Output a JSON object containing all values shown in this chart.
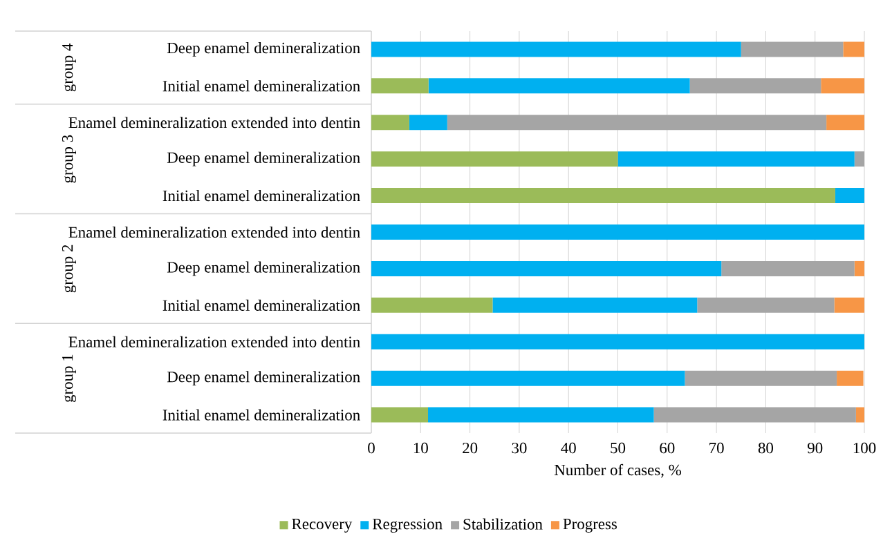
{
  "chart_data": {
    "type": "bar",
    "orientation": "horizontal",
    "stacked": true,
    "xlabel": "Number of cases, %",
    "categories": [
      "Deep enamel demineralization",
      "Initial enamel demineralization",
      "Enamel demineralization extended into dentin",
      "Deep enamel demineralization",
      "Initial enamel demineralization",
      "Enamel demineralization extended into dentin",
      "Deep enamel demineralization",
      "Initial enamel demineralization",
      "Enamel demineralization extended into dentin",
      "Deep enamel demineralization",
      "Initial enamel demineralization"
    ],
    "series": [
      {
        "name": "Recovery",
        "color": "#9bbb59",
        "values": [
          0,
          11.6,
          7.7,
          50,
          94.1,
          0,
          0,
          24.6,
          0,
          0,
          11.5
        ]
      },
      {
        "name": "Regression",
        "color": "#00b0f0",
        "values": [
          75,
          53,
          7.7,
          48,
          5.9,
          100,
          71,
          41.5,
          100,
          63.6,
          45.8
        ]
      },
      {
        "name": "Stabilization",
        "color": "#a5a5a5",
        "values": [
          20.7,
          26.6,
          76.9,
          2,
          0,
          0,
          27,
          27.8,
          0,
          30.8,
          41
        ]
      },
      {
        "name": "Progress",
        "color": "#f79646",
        "values": [
          4.3,
          8.8,
          7.7,
          0,
          0,
          0,
          2,
          6.1,
          0,
          5.4,
          1.7
        ]
      }
    ],
    "annotations": [
      "group 4",
      "group 3",
      "group 2",
      "group 1"
    ],
    "xlim": [
      0,
      100
    ],
    "xticks": [
      0,
      10,
      20,
      30,
      40,
      50,
      60,
      70,
      80,
      90,
      100
    ],
    "grid": "x",
    "legend": "bottom"
  }
}
